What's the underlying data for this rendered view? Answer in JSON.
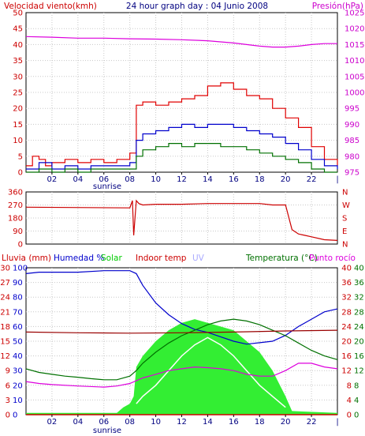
{
  "chart_data": [
    {
      "type": "line",
      "header": {
        "left": "Velocidad viento(kmh)",
        "center": "24 hour graph day : 04 Junio 2008",
        "right": "Presión(hPa)"
      },
      "x_ticks": [
        "02",
        "04",
        "06",
        "08",
        "10",
        "12",
        "14",
        "16",
        "18",
        "20",
        "22"
      ],
      "sunrise_label": "sunrise",
      "left_axis": {
        "ticks": [
          "0",
          "5",
          "10",
          "15",
          "20",
          "25",
          "30",
          "35",
          "40",
          "45",
          "50"
        ],
        "range": [
          0,
          50
        ]
      },
      "right_axis": {
        "ticks": [
          "975",
          "980",
          "985",
          "990",
          "995",
          "1000",
          "1005",
          "1010",
          "1015",
          "1020",
          "1025"
        ],
        "range": [
          975,
          1025
        ]
      },
      "colors": {
        "gust": "#e00000",
        "wind_avg": "#0000cc",
        "wind_min": "#007000",
        "pressure": "#dd00dd",
        "left_axis": "#cc0000",
        "right_axis": "#cc00cc"
      },
      "series": [
        {
          "key": "pressure",
          "axis": "right",
          "x": [
            0,
            2,
            4,
            6,
            8,
            10,
            12,
            14,
            16,
            18,
            19,
            20,
            21,
            22,
            23,
            24
          ],
          "y": [
            1017.5,
            1017.3,
            1017,
            1017,
            1016.8,
            1016.7,
            1016.5,
            1016.2,
            1015.5,
            1014.5,
            1014.2,
            1014.2,
            1014.5,
            1015,
            1015.3,
            1015.3
          ]
        },
        {
          "key": "gust",
          "axis": "left",
          "x": [
            0,
            0.5,
            1,
            1.5,
            2,
            3,
            4,
            5,
            6,
            7,
            8,
            8.5,
            9,
            10,
            11,
            12,
            13,
            14,
            15,
            16,
            17,
            18,
            19,
            20,
            21,
            22,
            23,
            24
          ],
          "y": [
            2,
            5,
            4,
            2,
            3,
            4,
            3,
            4,
            3,
            4,
            6,
            21,
            22,
            21,
            22,
            23,
            24,
            27,
            28,
            26,
            24,
            23,
            20,
            17,
            14,
            8,
            4,
            2
          ]
        },
        {
          "key": "wind_avg",
          "axis": "left",
          "x": [
            0,
            1,
            2,
            3,
            4,
            5,
            6,
            7,
            8,
            8.5,
            9,
            10,
            11,
            12,
            13,
            14,
            15,
            16,
            17,
            18,
            19,
            20,
            21,
            22,
            23,
            24
          ],
          "y": [
            1,
            3,
            1,
            2,
            1,
            2,
            2,
            2,
            3,
            10,
            12,
            13,
            14,
            15,
            14,
            15,
            15,
            14,
            13,
            12,
            11,
            9,
            7,
            4,
            2,
            1
          ]
        },
        {
          "key": "wind_min",
          "axis": "left",
          "x": [
            0,
            1,
            2,
            3,
            4,
            5,
            6,
            7,
            8,
            8.5,
            9,
            10,
            11,
            12,
            13,
            14,
            15,
            16,
            17,
            18,
            19,
            20,
            21,
            22,
            23,
            24
          ],
          "y": [
            0,
            1,
            0,
            1,
            0,
            1,
            1,
            1,
            1,
            5,
            7,
            8,
            9,
            8,
            9,
            9,
            8,
            8,
            7,
            6,
            5,
            4,
            3,
            1,
            0,
            0
          ]
        }
      ]
    },
    {
      "type": "line",
      "x_ticks": [
        "02",
        "04",
        "06",
        "08",
        "10",
        "12",
        "14",
        "16",
        "18",
        "20",
        "22"
      ],
      "left_axis": {
        "ticks": [
          "0",
          "90",
          "180",
          "270",
          "360"
        ],
        "range": [
          0,
          360
        ]
      },
      "right_axis": {
        "ticks": [
          "N",
          "E",
          "S",
          "W",
          "N"
        ]
      },
      "colors": {
        "direction": "#cc0000",
        "axis": "#cc0000"
      },
      "series": [
        {
          "key": "direction",
          "axis": "left",
          "x": [
            0,
            8,
            8.2,
            8.3,
            8.5,
            8.7,
            9,
            10,
            12,
            14,
            16,
            18,
            19,
            20,
            20.5,
            21,
            21.5,
            22,
            23,
            24
          ],
          "y": [
            255,
            250,
            300,
            60,
            300,
            280,
            270,
            275,
            275,
            280,
            280,
            280,
            270,
            270,
            100,
            70,
            60,
            50,
            30,
            25
          ]
        }
      ]
    },
    {
      "type": "line",
      "header": [
        {
          "text": "Lluvia (mm)",
          "color": "#cc0000"
        },
        {
          "text": "Humedad %",
          "color": "#0000cc"
        },
        {
          "text": "Solar",
          "color": "#00cc00"
        },
        {
          "text": "Indoor temp",
          "color": "#cc0000"
        },
        {
          "text": "UV",
          "color": "#aaaaff"
        },
        {
          "text": "Temperatura (°C)",
          "color": "#007000"
        },
        {
          "text": "Punto rocío",
          "color": "#dd00dd"
        }
      ],
      "x_ticks": [
        "02",
        "04",
        "06",
        "08",
        "10",
        "12",
        "14",
        "16",
        "18",
        "20",
        "22"
      ],
      "sunrise_label": "sunrise",
      "axes": {
        "rain": {
          "ticks": [
            "0",
            "3",
            "6",
            "9",
            "12",
            "15",
            "18",
            "21",
            "24",
            "27",
            "30"
          ],
          "range": [
            0,
            30
          ],
          "color": "#cc0000"
        },
        "humidity": {
          "ticks": [
            "0",
            "10",
            "20",
            "30",
            "40",
            "50",
            "60",
            "70",
            "80",
            "90",
            "100"
          ],
          "range": [
            0,
            100
          ],
          "color": "#0000cc"
        },
        "temp_left": {
          "ticks": [
            "0",
            "4",
            "8",
            "12",
            "16",
            "20",
            "24",
            "28",
            "32",
            "36",
            "40"
          ],
          "range": [
            0,
            40
          ],
          "color": "#007000"
        },
        "temp_right": {
          "ticks": [
            "0",
            "4",
            "8",
            "12",
            "16",
            "20",
            "24",
            "28",
            "32",
            "36",
            "40"
          ],
          "range": [
            0,
            40
          ],
          "color": "#cc0000"
        }
      },
      "colors": {
        "solar": "#33ee33",
        "uv": "#ffffff",
        "humidity": "#0000cc",
        "temperature": "#007000",
        "indoor": "#990000",
        "dewpoint": "#dd00dd",
        "rain": "#cc0000"
      },
      "series": [
        {
          "key": "solar",
          "axis": "temp_left",
          "x": [
            0,
            7,
            7.5,
            8,
            8.3,
            8.5,
            9,
            10,
            11,
            12,
            13,
            14,
            15,
            16,
            17,
            18,
            19,
            20,
            20.5,
            24
          ],
          "y": [
            0.5,
            0.5,
            2,
            3,
            5,
            13,
            16,
            20,
            23,
            25,
            26,
            25,
            24,
            23,
            20,
            17,
            12,
            5,
            1,
            0.5
          ]
        },
        {
          "key": "uv",
          "axis": "temp_left",
          "x": [
            8.5,
            9,
            10,
            11,
            12,
            13,
            14,
            15,
            16,
            17,
            18,
            19,
            20
          ],
          "y": [
            3,
            5,
            8,
            12,
            16,
            19,
            21,
            19,
            16,
            12,
            8,
            5,
            2
          ]
        },
        {
          "key": "humidity",
          "axis": "humidity",
          "x": [
            0,
            1,
            2,
            4,
            6,
            7,
            8,
            8.5,
            9,
            10,
            11,
            12,
            13,
            14,
            15,
            16,
            17,
            18,
            19,
            20,
            21,
            22,
            23,
            24
          ],
          "y": [
            96,
            97,
            97,
            97,
            98,
            98,
            98,
            96,
            88,
            76,
            68,
            62,
            58,
            56,
            53,
            50,
            48,
            49,
            50,
            54,
            60,
            65,
            70,
            72
          ]
        },
        {
          "key": "temperature",
          "axis": "temp_left",
          "x": [
            0,
            1,
            2,
            3,
            4,
            5,
            6,
            7,
            8,
            8.5,
            9,
            10,
            11,
            12,
            13,
            14,
            15,
            16,
            17,
            18,
            19,
            20,
            21,
            22,
            23,
            24
          ],
          "y": [
            12.5,
            11.5,
            11,
            10.5,
            10.2,
            9.8,
            9.5,
            9.5,
            10.5,
            12,
            14,
            17,
            19.5,
            21.5,
            23,
            24.5,
            25.5,
            26,
            25.5,
            24.5,
            23,
            21.5,
            19.5,
            17.5,
            16,
            15
          ]
        },
        {
          "key": "indoor",
          "axis": "temp_left",
          "x": [
            0,
            4,
            8,
            12,
            16,
            20,
            24
          ],
          "y": [
            22.5,
            22.3,
            22.2,
            22.3,
            22.5,
            22.8,
            23
          ]
        },
        {
          "key": "dewpoint",
          "axis": "temp_left",
          "x": [
            0,
            1,
            2,
            4,
            6,
            7,
            8,
            9,
            10,
            11,
            12,
            13,
            14,
            15,
            16,
            17,
            18,
            19,
            20,
            21,
            22,
            23,
            24
          ],
          "y": [
            9,
            8.5,
            8.2,
            7.8,
            7.5,
            7.8,
            8.5,
            10,
            11,
            12,
            12.5,
            13,
            12.8,
            12.5,
            12,
            11,
            10.5,
            10.5,
            12,
            14,
            14,
            13,
            12.5
          ]
        },
        {
          "key": "rain",
          "axis": "rain",
          "x": [
            0,
            24
          ],
          "y": [
            0,
            0
          ]
        }
      ]
    }
  ]
}
